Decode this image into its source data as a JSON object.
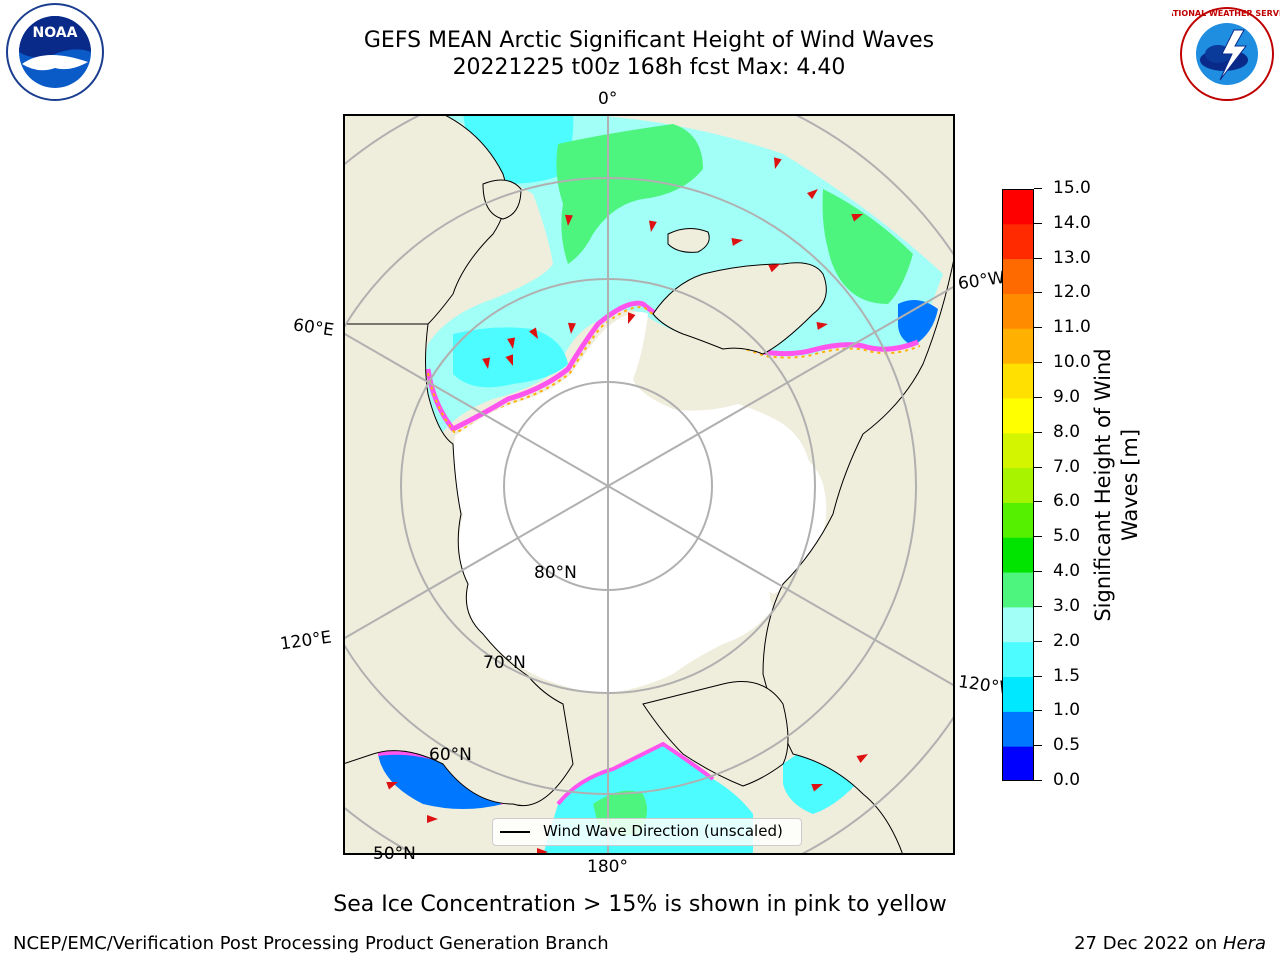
{
  "title": {
    "line1": "GEFS MEAN Arctic Significant Height of Wind Waves",
    "line2": "20221225 t00z 168h fcst   Max: 4.40"
  },
  "logos": {
    "left": {
      "name": "noaa-logo",
      "text": "NOAA"
    },
    "right": {
      "name": "nws-logo",
      "text": "NATIONAL WEATHER SERVICE"
    }
  },
  "map": {
    "lon_labels": {
      "top": "0°",
      "right_upper": "60°W",
      "right_lower": "120°W",
      "bottom": "180°",
      "left_upper": "60°E",
      "left_lower": "120°E"
    },
    "lat_labels": {
      "lat80": "80°N",
      "lat70": "70°N",
      "lat60": "60°N",
      "lat50": "50°N"
    }
  },
  "colorbar": {
    "label_line1": "Significant Height of Wind",
    "label_line2": "Waves [m]",
    "ticks": [
      "0.0",
      "0.5",
      "1.0",
      "1.5",
      "2.0",
      "3.0",
      "4.0",
      "5.0",
      "6.0",
      "7.0",
      "8.0",
      "9.0",
      "10.0",
      "11.0",
      "12.0",
      "13.0",
      "14.0",
      "15.0"
    ],
    "colors": [
      "#0000ff",
      "#0077ff",
      "#00e8ff",
      "#4dfcff",
      "#a2fff7",
      "#4df57f",
      "#00e400",
      "#54f000",
      "#a8f400",
      "#d4f500",
      "#ffff00",
      "#ffe000",
      "#ffb000",
      "#ff8c00",
      "#ff6a00",
      "#ff2a00",
      "#ff0000"
    ]
  },
  "legend": {
    "label": "Wind Wave Direction (unscaled)"
  },
  "subtitle": "Sea Ice Concentration > 15% is shown in pink to yellow",
  "footer": {
    "left": "NCEP/EMC/Verification Post Processing Product Generation Branch",
    "right_prefix": "27 Dec 2022 on ",
    "right_host": "Hera"
  }
}
